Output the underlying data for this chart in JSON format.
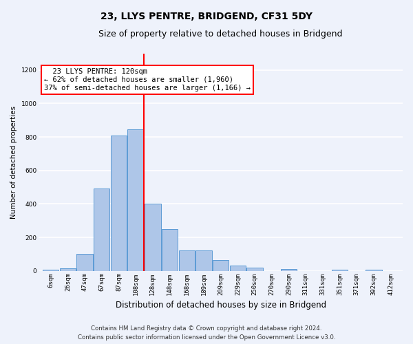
{
  "title": "23, LLYS PENTRE, BRIDGEND, CF31 5DY",
  "subtitle": "Size of property relative to detached houses in Bridgend",
  "xlabel": "Distribution of detached houses by size in Bridgend",
  "ylabel": "Number of detached properties",
  "bar_labels": [
    "6sqm",
    "26sqm",
    "47sqm",
    "67sqm",
    "87sqm",
    "108sqm",
    "128sqm",
    "148sqm",
    "168sqm",
    "189sqm",
    "209sqm",
    "229sqm",
    "250sqm",
    "270sqm",
    "290sqm",
    "311sqm",
    "331sqm",
    "351sqm",
    "371sqm",
    "392sqm",
    "412sqm"
  ],
  "bar_values": [
    8,
    15,
    100,
    490,
    810,
    845,
    400,
    248,
    120,
    120,
    65,
    32,
    20,
    0,
    12,
    0,
    0,
    5,
    0,
    5,
    0
  ],
  "bar_color": "#aec6e8",
  "bar_edge_color": "#5b9bd5",
  "background_color": "#eef2fb",
  "grid_color": "#ffffff",
  "vline_x": 5.5,
  "vline_color": "red",
  "annotation_text": "  23 LLYS PENTRE: 120sqm\n← 62% of detached houses are smaller (1,960)\n37% of semi-detached houses are larger (1,166) →",
  "annotation_box_color": "white",
  "annotation_box_edge": "red",
  "footer_line1": "Contains HM Land Registry data © Crown copyright and database right 2024.",
  "footer_line2": "Contains public sector information licensed under the Open Government Licence v3.0.",
  "ylim": [
    0,
    1300
  ],
  "yticks": [
    0,
    200,
    400,
    600,
    800,
    1000,
    1200
  ],
  "title_fontsize": 10,
  "subtitle_fontsize": 9,
  "xlabel_fontsize": 8.5,
  "ylabel_fontsize": 7.5,
  "tick_fontsize": 6.5,
  "annotation_fontsize": 7.5
}
